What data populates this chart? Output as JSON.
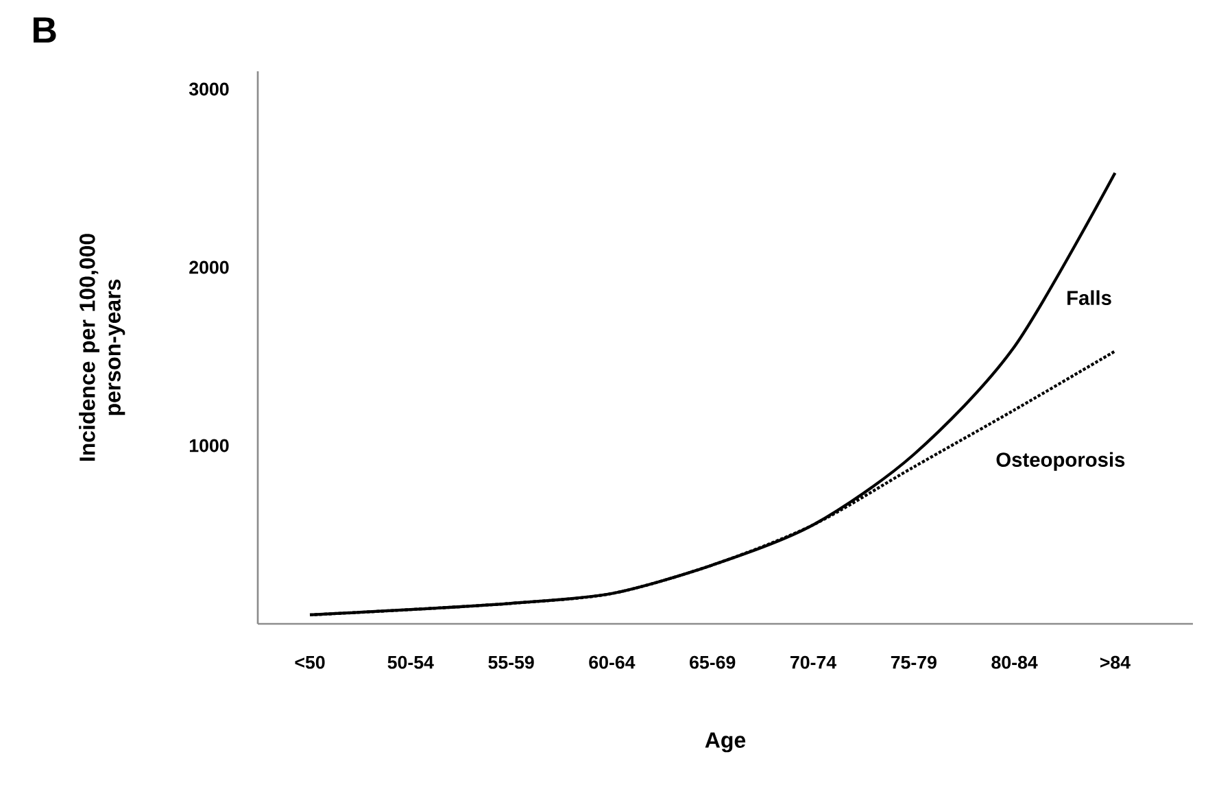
{
  "chart_data": {
    "type": "line",
    "xlabel": "Age",
    "ylabel": "Incidence per 100,000 person-years",
    "categories": [
      "<50",
      "50-54",
      "55-59",
      "60-64",
      "65-69",
      "70-74",
      "75-79",
      "80-84",
      ">84"
    ],
    "series": [
      {
        "name": "Falls",
        "color": "#000000",
        "line_style": "solid",
        "values": [
          50,
          80,
          115,
          170,
          330,
          555,
          950,
          1555,
          2530
        ]
      },
      {
        "name": "Osteoporosis",
        "color": "#000000",
        "line_style": "dotted",
        "values": [
          50,
          80,
          115,
          170,
          330,
          555,
          880,
          1200,
          1530
        ]
      }
    ],
    "ylim": [
      0,
      3100
    ],
    "yticks": [
      1000,
      2000,
      3000
    ],
    "annotations": [
      "B"
    ]
  }
}
